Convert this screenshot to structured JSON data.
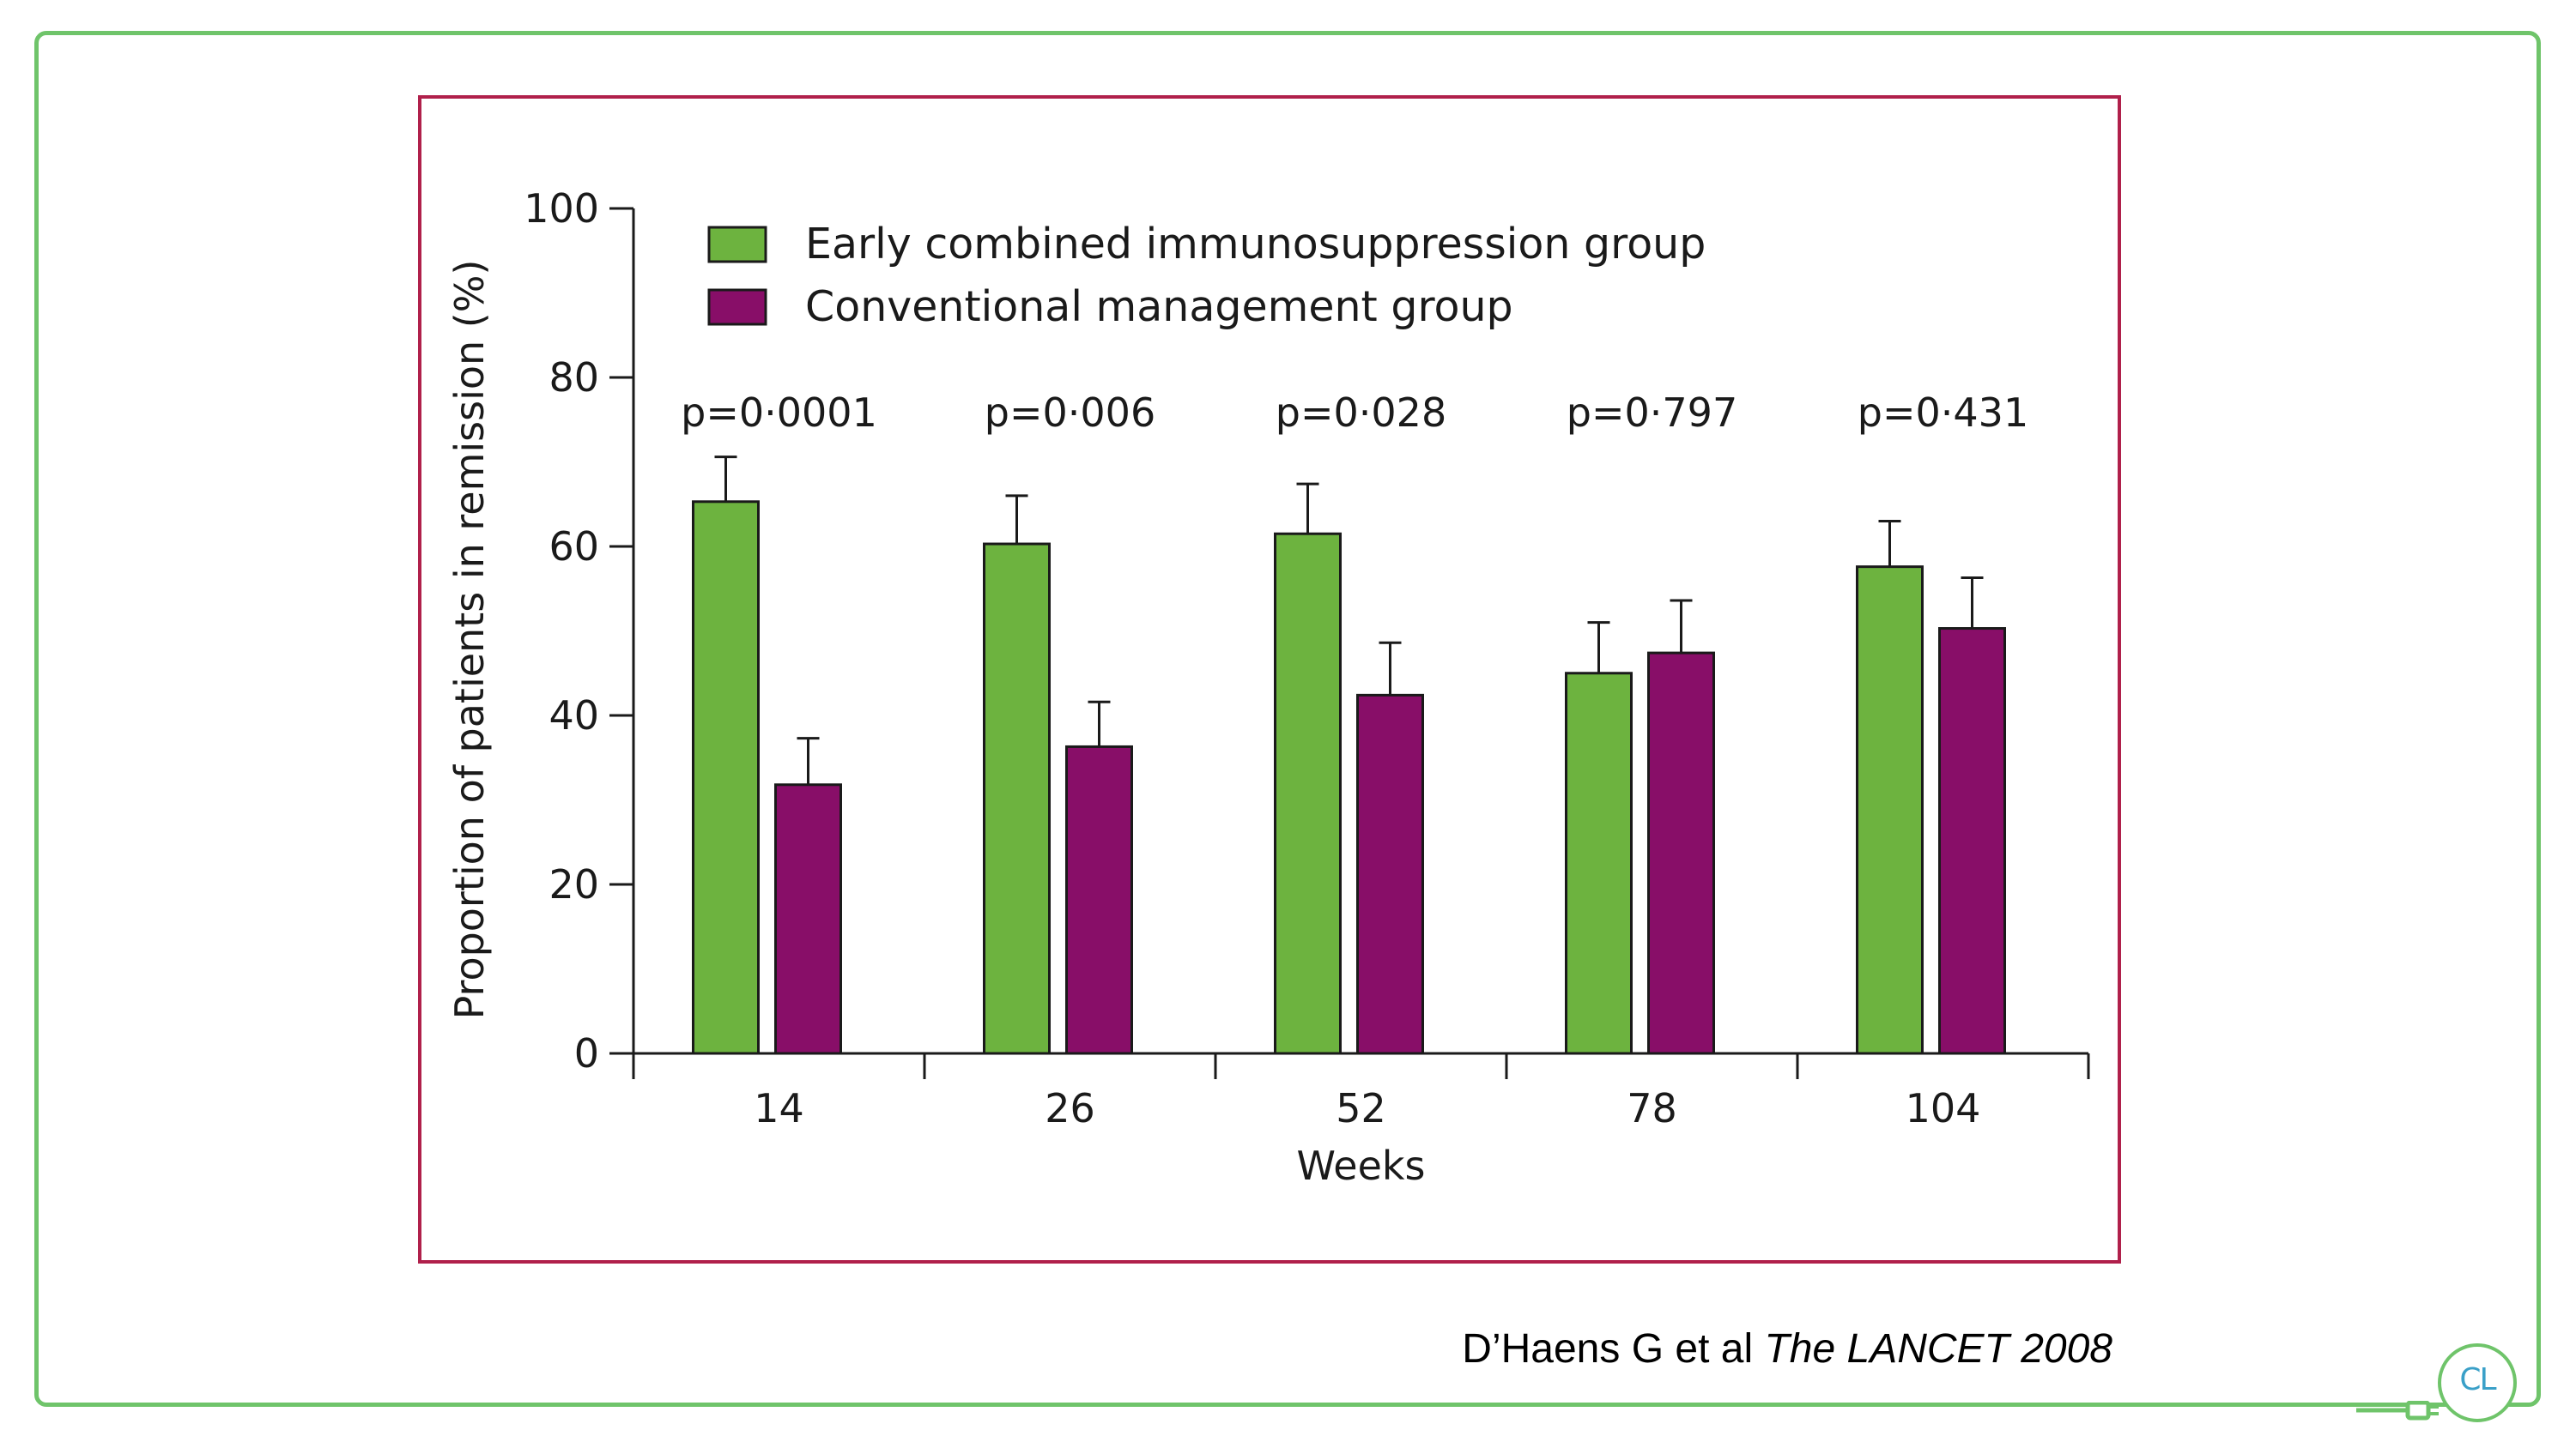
{
  "chart_data": {
    "type": "bar",
    "categories": [
      "14",
      "26",
      "52",
      "78",
      "104"
    ],
    "series": [
      {
        "name": "Early combined immunosuppression group",
        "color": "#6db33f",
        "values": [
          65.3,
          60.3,
          61.5,
          45.0,
          57.6
        ],
        "error_upper": [
          70.6,
          66.0,
          67.4,
          51.0,
          63.0
        ]
      },
      {
        "name": "Conventional management group",
        "color": "#880e68",
        "values": [
          31.8,
          36.3,
          42.4,
          47.4,
          50.3
        ],
        "error_upper": [
          37.3,
          41.6,
          48.6,
          53.6,
          56.3
        ]
      }
    ],
    "p_values": [
      "p=0·0001",
      "p=0·006",
      "p=0·028",
      "p=0·797",
      "p=0·431"
    ],
    "xlabel": "Weeks",
    "ylabel": "Proportion of patients in remission (%)",
    "ylim": [
      0,
      100
    ],
    "yticks": [
      "0",
      "20",
      "40",
      "60",
      "80",
      "100"
    ],
    "legend_position": "top-left",
    "grid": false
  },
  "citation": {
    "authors": "D’Haens G et al",
    "journal": "The LANCET 2008"
  },
  "logo": {
    "text": "CL",
    "accent": "#6fc46a"
  },
  "frame_color": "#6fc46a",
  "panel_border_color": "#b0204b"
}
